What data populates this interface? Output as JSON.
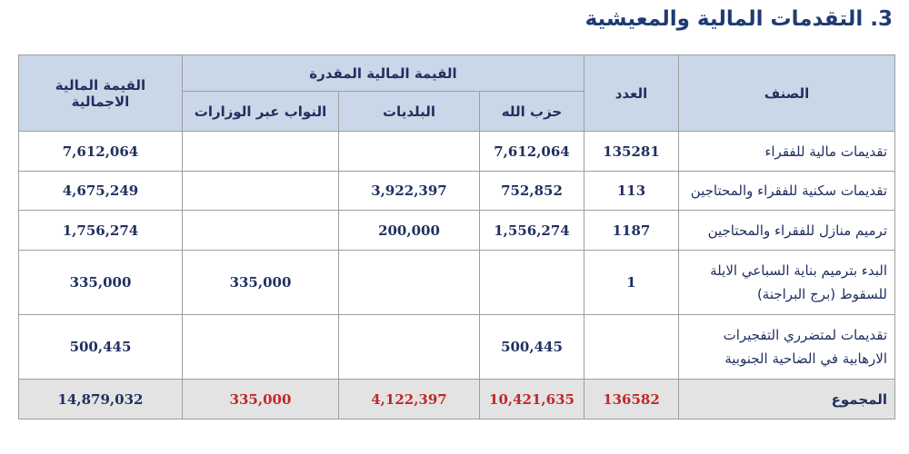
{
  "title": "3. التقدمات المالية والمعيشية",
  "headers": {
    "category": "الصنف",
    "count": "العدد",
    "estimated_value": "القيمة المالية المقدرة",
    "party": "حزب الله",
    "municipalities": "البلديات",
    "deputies": "النواب عبر الوزارات",
    "total_value": "القيمة المالية الاجمالية"
  },
  "rows": [
    {
      "category": "تقديمات مالية للفقراء",
      "count": "135281",
      "party": "7,612,064",
      "municipalities": "",
      "deputies": "",
      "total": "7,612,064"
    },
    {
      "category": "تقديمات سكنية للفقراء والمحتاجين",
      "count": "113",
      "party": "752,852",
      "municipalities": "3,922,397",
      "deputies": "",
      "total": "4,675,249"
    },
    {
      "category": "ترميم منازل للفقراء والمحتاجين",
      "count": "1187",
      "party": "1,556,274",
      "municipalities": "200,000",
      "deputies": "",
      "total": "1,756,274"
    },
    {
      "category": "البدء بترميم بناية السباعي الايلة للسقوط (برج البراجنة)",
      "count": "1",
      "party": "",
      "municipalities": "",
      "deputies": "335,000",
      "total": "335,000"
    },
    {
      "category": "تقديمات لمتضرري التفجيرات الارهابية في الضاحية الجنوبية",
      "count": "",
      "party": "500,445",
      "municipalities": "",
      "deputies": "",
      "total": "500,445"
    }
  ],
  "totals": {
    "label": "المجموع",
    "count": "136582",
    "party": "10,421,635",
    "municipalities": "4,122,397",
    "deputies": "335,000",
    "total": "14,879,032"
  }
}
